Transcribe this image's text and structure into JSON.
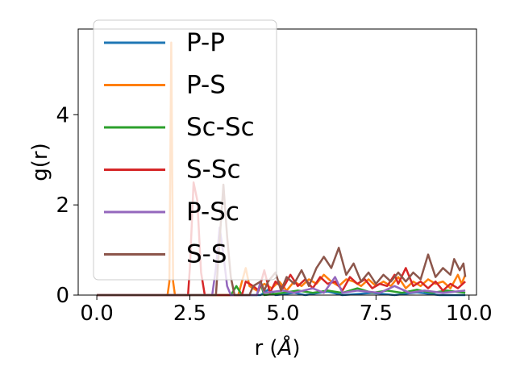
{
  "chart_data": {
    "type": "line",
    "xlabel": "r (",
    "xlabel_unit": "Å",
    "xlabel_close": ")",
    "ylabel": "g(r)",
    "xlim": [
      -0.5,
      10.2
    ],
    "ylim": [
      0,
      5.9
    ],
    "xticks": [
      0.0,
      2.5,
      5.0,
      7.5,
      10.0
    ],
    "xtick_labels": [
      "0.0",
      "2.5",
      "5.0",
      "7.5",
      "10.0"
    ],
    "yticks": [
      0,
      2,
      4
    ],
    "ytick_labels": [
      "0",
      "2",
      "4"
    ],
    "grid": false,
    "legend_position": "upper-left",
    "series": [
      {
        "name": "P-P",
        "color": "#1f77b4",
        "points": [
          [
            0,
            0
          ],
          [
            3.5,
            0
          ],
          [
            4.4,
            0
          ],
          [
            4.6,
            0.12
          ],
          [
            4.8,
            0
          ],
          [
            5.3,
            0.05
          ],
          [
            5.6,
            0
          ],
          [
            6.2,
            0.08
          ],
          [
            6.6,
            0
          ],
          [
            7.4,
            0.05
          ],
          [
            8,
            0
          ],
          [
            8.6,
            0.06
          ],
          [
            9.2,
            0
          ],
          [
            9.9,
            0
          ]
        ]
      },
      {
        "name": "P-S",
        "color": "#ff7f0e",
        "points": [
          [
            0,
            0
          ],
          [
            1.9,
            0
          ],
          [
            1.95,
            0.3
          ],
          [
            2.0,
            5.6
          ],
          [
            2.05,
            0.3
          ],
          [
            2.1,
            0
          ],
          [
            3.8,
            0
          ],
          [
            3.9,
            0.3
          ],
          [
            4.0,
            0.6
          ],
          [
            4.1,
            0.2
          ],
          [
            4.3,
            0.1
          ],
          [
            4.5,
            0.25
          ],
          [
            4.7,
            0.15
          ],
          [
            4.9,
            0.3
          ],
          [
            5.1,
            0.1
          ],
          [
            5.3,
            0.3
          ],
          [
            5.5,
            0.2
          ],
          [
            5.7,
            0.35
          ],
          [
            5.9,
            0.25
          ],
          [
            6.1,
            0.45
          ],
          [
            6.3,
            0.3
          ],
          [
            6.5,
            0.2
          ],
          [
            6.7,
            0.35
          ],
          [
            6.9,
            0.3
          ],
          [
            7.1,
            0.2
          ],
          [
            7.3,
            0.35
          ],
          [
            7.5,
            0.2
          ],
          [
            7.7,
            0.3
          ],
          [
            7.9,
            0.2
          ],
          [
            8.1,
            0.4
          ],
          [
            8.3,
            0.15
          ],
          [
            8.5,
            0.3
          ],
          [
            8.7,
            0.2
          ],
          [
            8.9,
            0.35
          ],
          [
            9.1,
            0.25
          ],
          [
            9.3,
            0.3
          ],
          [
            9.5,
            0.15
          ],
          [
            9.7,
            0.45
          ],
          [
            9.8,
            0.25
          ],
          [
            9.9,
            0.45
          ]
        ]
      },
      {
        "name": "Sc-Sc",
        "color": "#2ca02c",
        "points": [
          [
            0,
            0
          ],
          [
            3.6,
            0
          ],
          [
            3.75,
            0.2
          ],
          [
            3.9,
            0
          ],
          [
            4.3,
            0
          ],
          [
            4.4,
            0.25
          ],
          [
            4.5,
            0
          ],
          [
            5.0,
            0.05
          ],
          [
            5.4,
            0.1
          ],
          [
            5.8,
            0.05
          ],
          [
            6.2,
            0.1
          ],
          [
            6.6,
            0.05
          ],
          [
            7.0,
            0.15
          ],
          [
            7.4,
            0.05
          ],
          [
            7.8,
            0.1
          ],
          [
            8.2,
            0.05
          ],
          [
            8.6,
            0.12
          ],
          [
            9.0,
            0.05
          ],
          [
            9.4,
            0.1
          ],
          [
            9.9,
            0.05
          ]
        ]
      },
      {
        "name": "S-Sc",
        "color": "#d62728",
        "points": [
          [
            0,
            0
          ],
          [
            2.45,
            0
          ],
          [
            2.5,
            0.6
          ],
          [
            2.6,
            2.5
          ],
          [
            2.7,
            2.1
          ],
          [
            2.8,
            0.5
          ],
          [
            2.9,
            0
          ],
          [
            3.9,
            0
          ],
          [
            4.0,
            0.3
          ],
          [
            4.2,
            0.2
          ],
          [
            4.35,
            0.1
          ],
          [
            4.5,
            0.55
          ],
          [
            4.65,
            0.05
          ],
          [
            4.8,
            0.3
          ],
          [
            5.0,
            0.15
          ],
          [
            5.2,
            0.45
          ],
          [
            5.4,
            0.2
          ],
          [
            5.6,
            0.35
          ],
          [
            5.8,
            0.15
          ],
          [
            6.0,
            0.4
          ],
          [
            6.2,
            0.25
          ],
          [
            6.4,
            0.3
          ],
          [
            6.6,
            0.1
          ],
          [
            6.8,
            0.4
          ],
          [
            7.0,
            0.25
          ],
          [
            7.2,
            0.35
          ],
          [
            7.4,
            0.15
          ],
          [
            7.6,
            0.25
          ],
          [
            7.8,
            0.2
          ],
          [
            8.0,
            0.45
          ],
          [
            8.1,
            0.25
          ],
          [
            8.3,
            0.6
          ],
          [
            8.5,
            0.2
          ],
          [
            8.7,
            0.3
          ],
          [
            8.9,
            0.15
          ],
          [
            9.1,
            0.3
          ],
          [
            9.3,
            0.1
          ],
          [
            9.5,
            0.25
          ],
          [
            9.7,
            0.15
          ],
          [
            9.9,
            0.3
          ]
        ]
      },
      {
        "name": "P-Sc",
        "color": "#9467bd",
        "points": [
          [
            0,
            0
          ],
          [
            3.1,
            0
          ],
          [
            3.2,
            0.6
          ],
          [
            3.3,
            1.5
          ],
          [
            3.4,
            0.9
          ],
          [
            3.5,
            0.2
          ],
          [
            3.6,
            0
          ],
          [
            4.3,
            0
          ],
          [
            4.4,
            0.3
          ],
          [
            4.5,
            0.05
          ],
          [
            5.0,
            0.1
          ],
          [
            5.3,
            0.05
          ],
          [
            5.8,
            0.15
          ],
          [
            6.1,
            0.05
          ],
          [
            6.4,
            0.4
          ],
          [
            6.6,
            0.05
          ],
          [
            7.0,
            0.1
          ],
          [
            7.6,
            0.05
          ],
          [
            8.0,
            0.2
          ],
          [
            8.4,
            0.05
          ],
          [
            8.8,
            0.1
          ],
          [
            9.3,
            0.05
          ],
          [
            9.9,
            0.1
          ]
        ]
      },
      {
        "name": "S-S",
        "color": "#8c564b",
        "points": [
          [
            0,
            0
          ],
          [
            3.2,
            0
          ],
          [
            3.3,
            1.2
          ],
          [
            3.4,
            2.45
          ],
          [
            3.5,
            1.3
          ],
          [
            3.6,
            0.4
          ],
          [
            3.7,
            0
          ],
          [
            4.1,
            0
          ],
          [
            4.2,
            0.2
          ],
          [
            4.4,
            0.3
          ],
          [
            4.5,
            0.1
          ],
          [
            4.6,
            0.3
          ],
          [
            4.8,
            0.5
          ],
          [
            4.95,
            0.1
          ],
          [
            5.1,
            0.4
          ],
          [
            5.3,
            0.25
          ],
          [
            5.5,
            0.55
          ],
          [
            5.7,
            0.2
          ],
          [
            5.9,
            0.6
          ],
          [
            6.1,
            0.85
          ],
          [
            6.3,
            0.6
          ],
          [
            6.5,
            1.05
          ],
          [
            6.7,
            0.45
          ],
          [
            6.9,
            0.7
          ],
          [
            7.1,
            0.3
          ],
          [
            7.3,
            0.5
          ],
          [
            7.5,
            0.25
          ],
          [
            7.7,
            0.45
          ],
          [
            7.9,
            0.3
          ],
          [
            8.1,
            0.5
          ],
          [
            8.3,
            0.3
          ],
          [
            8.5,
            0.5
          ],
          [
            8.7,
            0.35
          ],
          [
            8.9,
            0.9
          ],
          [
            9.1,
            0.4
          ],
          [
            9.3,
            0.6
          ],
          [
            9.5,
            0.45
          ],
          [
            9.6,
            0.8
          ],
          [
            9.75,
            0.55
          ],
          [
            9.85,
            0.7
          ],
          [
            9.9,
            0.4
          ]
        ]
      }
    ]
  }
}
